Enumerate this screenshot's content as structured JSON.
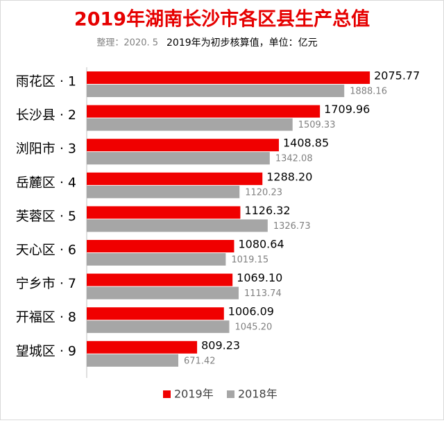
{
  "chart_data": {
    "type": "bar",
    "orientation": "horizontal",
    "title": "2019年湖南长沙市各区县生产总值",
    "subtitle_left": "整理：2020. 5",
    "subtitle_right": "2019年为初步核算值，单位：亿元",
    "categories": [
      "雨花区 · 1",
      "长沙县 · 2",
      "浏阳市 · 3",
      "岳麓区 · 4",
      "芙蓉区 · 5",
      "天心区 · 6",
      "宁乡市 · 7",
      "开福区 · 8",
      "望城区 · 9"
    ],
    "series": [
      {
        "name": "2019年",
        "color": "#f00000",
        "values": [
          2075.77,
          1709.96,
          1408.85,
          1288.2,
          1126.32,
          1080.64,
          1069.1,
          1006.09,
          809.23
        ],
        "value_labels": [
          "2075.77",
          "1709.96",
          "1408.85",
          "1288.20",
          "1126.32",
          "1080.64",
          "1069.10",
          "1006.09",
          "809.23"
        ]
      },
      {
        "name": "2018年",
        "color": "#a6a6a6",
        "values": [
          1888.16,
          1509.33,
          1342.08,
          1120.23,
          1326.73,
          1019.15,
          1113.74,
          1045.2,
          671.42
        ],
        "value_labels": [
          "1888.16",
          "1509.33",
          "1342.08",
          "1120.23",
          "1326.73",
          "1019.15",
          "1113.74",
          "1045.20",
          "671.42"
        ]
      }
    ],
    "legend": "bottom"
  }
}
